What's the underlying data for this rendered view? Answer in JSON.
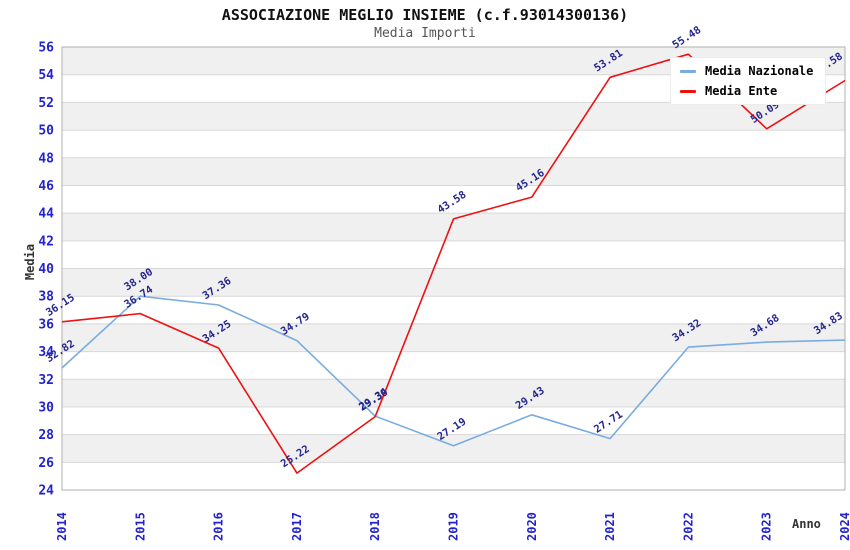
{
  "chart_data": {
    "type": "line",
    "title": "ASSOCIAZIONE MEGLIO INSIEME (c.f.93014300136)",
    "subtitle": "Media Importi",
    "xlabel": "Anno",
    "ylabel": "Media",
    "x": [
      2014,
      2015,
      2016,
      2017,
      2018,
      2019,
      2020,
      2021,
      2022,
      2023,
      2024
    ],
    "series": [
      {
        "name": "Media Nazionale",
        "color": "#79ace0",
        "values": [
          32.82,
          38.0,
          37.36,
          34.79,
          29.34,
          27.19,
          29.43,
          27.71,
          34.32,
          34.68,
          34.83
        ]
      },
      {
        "name": "Media Ente",
        "color": "#ee1111",
        "values": [
          36.15,
          36.74,
          34.25,
          25.22,
          29.3,
          43.58,
          45.16,
          53.81,
          55.48,
          50.09,
          53.58
        ]
      }
    ],
    "ylim": [
      24,
      56
    ],
    "ytick_step": 2,
    "grid": "horizontal-bands",
    "legend_position": "top-right",
    "point_labels": "all points, 2 decimals, rotated"
  },
  "style": {
    "band_color": "#f0f0f0",
    "grid_color": "#d8d8d8",
    "border_color": "#b0b0b0",
    "tick_label_color": "#2323cd",
    "point_label_color": "#26268f",
    "title_color": "#111111",
    "subtitle_color": "#555555",
    "axis_title_color": "#333333",
    "legend_bg": "#ffffff"
  }
}
